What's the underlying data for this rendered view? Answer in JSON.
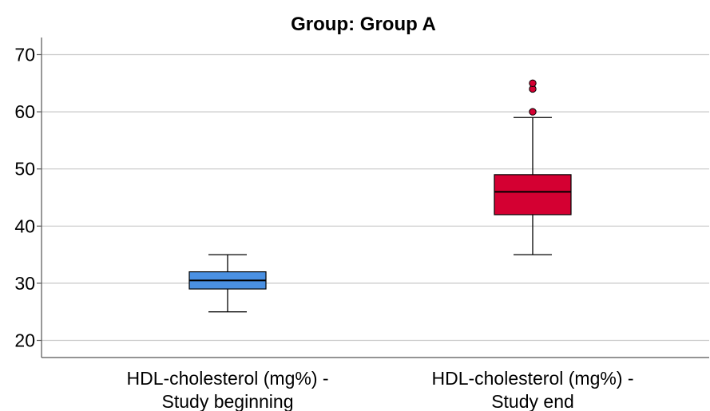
{
  "chart_data": {
    "type": "boxplot",
    "title": "Group: Group A",
    "xlabel": "",
    "ylabel": "",
    "ylim": [
      17,
      73
    ],
    "yticks": [
      20,
      30,
      40,
      50,
      60,
      70
    ],
    "grid": true,
    "categories": [
      [
        "HDL-cholesterol (mg%) -",
        "Study beginning"
      ],
      [
        "HDL-cholesterol (mg%) -",
        "Study end"
      ]
    ],
    "boxes": [
      {
        "color": "#4a90e2",
        "min": 25,
        "q1": 29,
        "median": 30.5,
        "q3": 32,
        "max": 35,
        "outliers": []
      },
      {
        "color": "#d40032",
        "min": 35,
        "q1": 42,
        "median": 46,
        "q3": 49,
        "max": 59,
        "outliers": [
          60,
          64,
          65
        ]
      }
    ]
  }
}
